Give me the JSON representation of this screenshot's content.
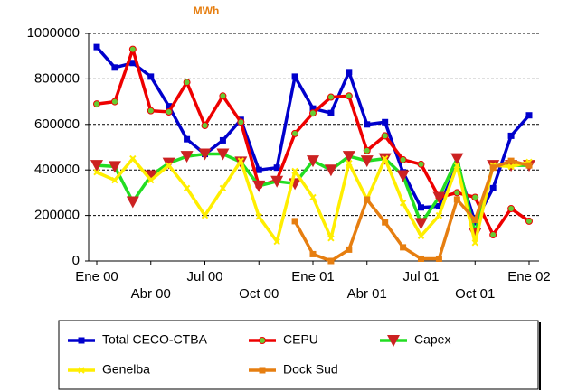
{
  "chart_data": {
    "type": "line",
    "subtitle": "MWh",
    "categories": [
      "Ene 00",
      null,
      null,
      "Abr 00",
      null,
      null,
      "Jul 00",
      null,
      null,
      "Oct 00",
      null,
      null,
      "Ene 01",
      null,
      null,
      "Abr 01",
      null,
      null,
      "Jul 01",
      null,
      null,
      "Oct 01",
      null,
      null,
      "Ene 02"
    ],
    "ylim": [
      0,
      1000000
    ],
    "yticks": [
      0,
      200000,
      400000,
      600000,
      800000,
      1000000
    ],
    "grid": true,
    "series": [
      {
        "name": "Total CECO-CTBA",
        "color": "#0000cc",
        "marker": "square",
        "values": [
          940000,
          850000,
          870000,
          810000,
          680000,
          535000,
          470000,
          530000,
          620000,
          400000,
          410000,
          810000,
          670000,
          650000,
          830000,
          600000,
          610000,
          390000,
          235000,
          240000,
          420000,
          170000,
          320000,
          550000,
          640000
        ]
      },
      {
        "name": "CEPU",
        "color": "#ee0000",
        "marker": "circle",
        "values": [
          690000,
          700000,
          930000,
          660000,
          655000,
          785000,
          595000,
          725000,
          610000,
          330000,
          355000,
          560000,
          650000,
          720000,
          725000,
          485000,
          550000,
          445000,
          425000,
          280000,
          300000,
          280000,
          115000,
          230000,
          175000
        ]
      },
      {
        "name": "Capex",
        "color": "#22dd22",
        "marker": "triangle",
        "values": [
          420000,
          415000,
          260000,
          375000,
          430000,
          460000,
          470000,
          470000,
          435000,
          330000,
          350000,
          340000,
          440000,
          400000,
          460000,
          440000,
          450000,
          375000,
          165000,
          280000,
          450000,
          120000,
          420000,
          420000,
          420000
        ]
      },
      {
        "name": "Genelba",
        "color": "#ffee00",
        "marker": "cross",
        "values": [
          390000,
          355000,
          450000,
          355000,
          420000,
          320000,
          200000,
          320000,
          440000,
          195000,
          85000,
          395000,
          280000,
          100000,
          430000,
          270000,
          450000,
          255000,
          110000,
          200000,
          420000,
          80000,
          420000,
          415000,
          435000
        ]
      },
      {
        "name": "Dock Sud",
        "color": "#e67e10",
        "marker": "square",
        "values": [
          null,
          null,
          null,
          null,
          null,
          null,
          null,
          null,
          null,
          null,
          null,
          175000,
          30000,
          0,
          50000,
          270000,
          170000,
          60000,
          10000,
          10000,
          270000,
          180000,
          410000,
          440000,
          420000
        ]
      }
    ]
  }
}
